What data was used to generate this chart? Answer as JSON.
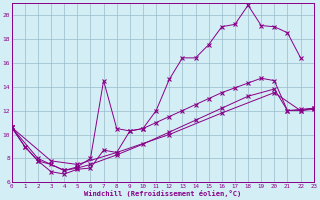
{
  "xlabel": "Windchill (Refroidissement éolien,°C)",
  "bg_color": "#d4eef5",
  "line_color": "#880088",
  "grid_color": "#99bbcc",
  "xlim": [
    0,
    23
  ],
  "ylim": [
    6,
    21
  ],
  "xticks": [
    0,
    1,
    2,
    3,
    4,
    5,
    6,
    7,
    8,
    9,
    10,
    11,
    12,
    13,
    14,
    15,
    16,
    17,
    18,
    19,
    20,
    21,
    22,
    23
  ],
  "yticks": [
    6,
    8,
    10,
    12,
    14,
    16,
    18,
    20
  ],
  "series1": [
    [
      0,
      10.6
    ],
    [
      1,
      9.0
    ],
    [
      2,
      7.8
    ],
    [
      3,
      6.9
    ],
    [
      4,
      6.7
    ],
    [
      5,
      7.1
    ],
    [
      6,
      7.2
    ],
    [
      7,
      8.7
    ],
    [
      8,
      8.5
    ],
    [
      9,
      10.3
    ],
    [
      10,
      10.5
    ],
    [
      11,
      12.0
    ],
    [
      12,
      14.6
    ],
    [
      13,
      16.4
    ],
    [
      14,
      16.4
    ],
    [
      15,
      17.5
    ],
    [
      16,
      19.0
    ],
    [
      17,
      19.2
    ],
    [
      18,
      20.8
    ],
    [
      19,
      19.1
    ],
    [
      20,
      19.0
    ],
    [
      21,
      18.5
    ],
    [
      22,
      16.4
    ]
  ],
  "series2": [
    [
      0,
      10.6
    ],
    [
      1,
      9.0
    ],
    [
      2,
      7.8
    ],
    [
      3,
      7.5
    ],
    [
      4,
      7.0
    ],
    [
      5,
      7.3
    ],
    [
      6,
      8.0
    ],
    [
      7,
      14.5
    ],
    [
      8,
      10.5
    ],
    [
      9,
      10.3
    ],
    [
      10,
      10.5
    ],
    [
      11,
      11.0
    ],
    [
      12,
      11.5
    ],
    [
      13,
      12.0
    ],
    [
      14,
      12.5
    ],
    [
      15,
      13.0
    ],
    [
      16,
      13.5
    ],
    [
      17,
      13.9
    ],
    [
      18,
      14.3
    ],
    [
      19,
      14.7
    ],
    [
      20,
      14.5
    ],
    [
      21,
      12.0
    ],
    [
      22,
      12.1
    ],
    [
      23,
      12.2
    ]
  ],
  "series3": [
    [
      0,
      10.6
    ],
    [
      2,
      8.0
    ],
    [
      4,
      7.0
    ],
    [
      5,
      7.2
    ],
    [
      6,
      7.5
    ],
    [
      8,
      8.3
    ],
    [
      10,
      9.2
    ],
    [
      12,
      10.2
    ],
    [
      14,
      11.2
    ],
    [
      16,
      12.2
    ],
    [
      18,
      13.2
    ],
    [
      20,
      13.8
    ],
    [
      21,
      12.0
    ],
    [
      22,
      12.0
    ],
    [
      23,
      12.1
    ]
  ],
  "series4": [
    [
      0,
      10.6
    ],
    [
      3,
      7.8
    ],
    [
      5,
      7.5
    ],
    [
      8,
      8.5
    ],
    [
      12,
      10.0
    ],
    [
      16,
      11.8
    ],
    [
      20,
      13.5
    ],
    [
      22,
      12.0
    ],
    [
      23,
      12.2
    ]
  ]
}
